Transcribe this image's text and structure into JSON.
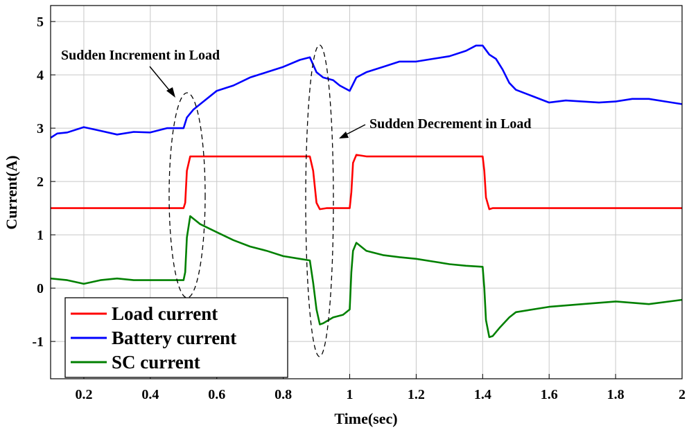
{
  "chart_data": {
    "type": "line",
    "xlabel": "Time(sec)",
    "ylabel": "Current(A)",
    "xlim": [
      0.1,
      2.0
    ],
    "ylim": [
      -1.7,
      5.3
    ],
    "xticks": [
      0.2,
      0.4,
      0.6,
      0.8,
      1.0,
      1.2,
      1.4,
      1.6,
      1.8,
      2.0
    ],
    "xtick_labels": [
      "0.2",
      "0.4",
      "0.6",
      "0.8",
      "1",
      "1.2",
      "1.4",
      "1.6",
      "1.8",
      "2"
    ],
    "yticks": [
      -1,
      0,
      1,
      2,
      3,
      4,
      5
    ],
    "ytick_labels": [
      "-1",
      "0",
      "1",
      "2",
      "3",
      "4",
      "5"
    ],
    "grid": true,
    "legend_position": "bottom-left",
    "series": [
      {
        "name": "Load current",
        "color": "#ff0000",
        "x": [
          0.1,
          0.2,
          0.3,
          0.4,
          0.5,
          0.505,
          0.51,
          0.52,
          0.55,
          0.6,
          0.7,
          0.8,
          0.88,
          0.89,
          0.9,
          0.91,
          0.93,
          0.95,
          1.0,
          1.005,
          1.01,
          1.02,
          1.05,
          1.1,
          1.2,
          1.3,
          1.4,
          1.405,
          1.41,
          1.42,
          1.43,
          1.5,
          1.6,
          1.7,
          1.8,
          1.9,
          2.0
        ],
        "y": [
          1.5,
          1.5,
          1.5,
          1.5,
          1.5,
          1.6,
          2.2,
          2.47,
          2.47,
          2.47,
          2.47,
          2.47,
          2.47,
          2.2,
          1.6,
          1.48,
          1.5,
          1.5,
          1.5,
          1.8,
          2.35,
          2.5,
          2.47,
          2.47,
          2.47,
          2.47,
          2.47,
          2.2,
          1.7,
          1.48,
          1.5,
          1.5,
          1.5,
          1.5,
          1.5,
          1.5,
          1.5
        ]
      },
      {
        "name": "Battery current",
        "color": "#0000ff",
        "x": [
          0.1,
          0.12,
          0.15,
          0.2,
          0.25,
          0.3,
          0.35,
          0.4,
          0.45,
          0.5,
          0.51,
          0.53,
          0.55,
          0.6,
          0.65,
          0.7,
          0.75,
          0.8,
          0.85,
          0.88,
          0.9,
          0.92,
          0.95,
          0.97,
          1.0,
          1.02,
          1.05,
          1.1,
          1.15,
          1.2,
          1.25,
          1.3,
          1.35,
          1.38,
          1.4,
          1.42,
          1.44,
          1.46,
          1.48,
          1.5,
          1.55,
          1.6,
          1.65,
          1.7,
          1.75,
          1.8,
          1.85,
          1.9,
          1.95,
          2.0
        ],
        "y": [
          2.82,
          2.9,
          2.92,
          3.02,
          2.95,
          2.88,
          2.93,
          2.92,
          3.0,
          3.0,
          3.2,
          3.35,
          3.45,
          3.7,
          3.8,
          3.95,
          4.05,
          4.15,
          4.28,
          4.33,
          4.05,
          3.95,
          3.9,
          3.8,
          3.7,
          3.95,
          4.05,
          4.15,
          4.25,
          4.25,
          4.3,
          4.35,
          4.45,
          4.55,
          4.55,
          4.38,
          4.3,
          4.1,
          3.85,
          3.72,
          3.6,
          3.48,
          3.52,
          3.5,
          3.48,
          3.5,
          3.55,
          3.55,
          3.5,
          3.45
        ]
      },
      {
        "name": "SC current",
        "color": "#008000",
        "x": [
          0.1,
          0.15,
          0.2,
          0.25,
          0.3,
          0.35,
          0.4,
          0.45,
          0.5,
          0.505,
          0.51,
          0.52,
          0.53,
          0.55,
          0.6,
          0.65,
          0.7,
          0.75,
          0.8,
          0.85,
          0.88,
          0.89,
          0.9,
          0.91,
          0.92,
          0.95,
          0.98,
          1.0,
          1.005,
          1.01,
          1.02,
          1.05,
          1.1,
          1.15,
          1.2,
          1.25,
          1.3,
          1.35,
          1.4,
          1.405,
          1.41,
          1.42,
          1.43,
          1.45,
          1.48,
          1.5,
          1.6,
          1.7,
          1.8,
          1.9,
          2.0
        ],
        "y": [
          0.18,
          0.15,
          0.08,
          0.15,
          0.18,
          0.15,
          0.15,
          0.15,
          0.15,
          0.3,
          0.95,
          1.35,
          1.3,
          1.2,
          1.05,
          0.9,
          0.78,
          0.7,
          0.6,
          0.55,
          0.52,
          0.1,
          -0.4,
          -0.68,
          -0.66,
          -0.55,
          -0.5,
          -0.4,
          0.3,
          0.7,
          0.85,
          0.7,
          0.62,
          0.58,
          0.55,
          0.5,
          0.45,
          0.42,
          0.4,
          0.0,
          -0.6,
          -0.92,
          -0.9,
          -0.75,
          -0.55,
          -0.45,
          -0.35,
          -0.3,
          -0.25,
          -0.3,
          -0.22
        ]
      }
    ],
    "annotations": [
      {
        "text": "Sudden Increment in Load"
      },
      {
        "text": "Sudden Decrement in Load"
      }
    ]
  }
}
